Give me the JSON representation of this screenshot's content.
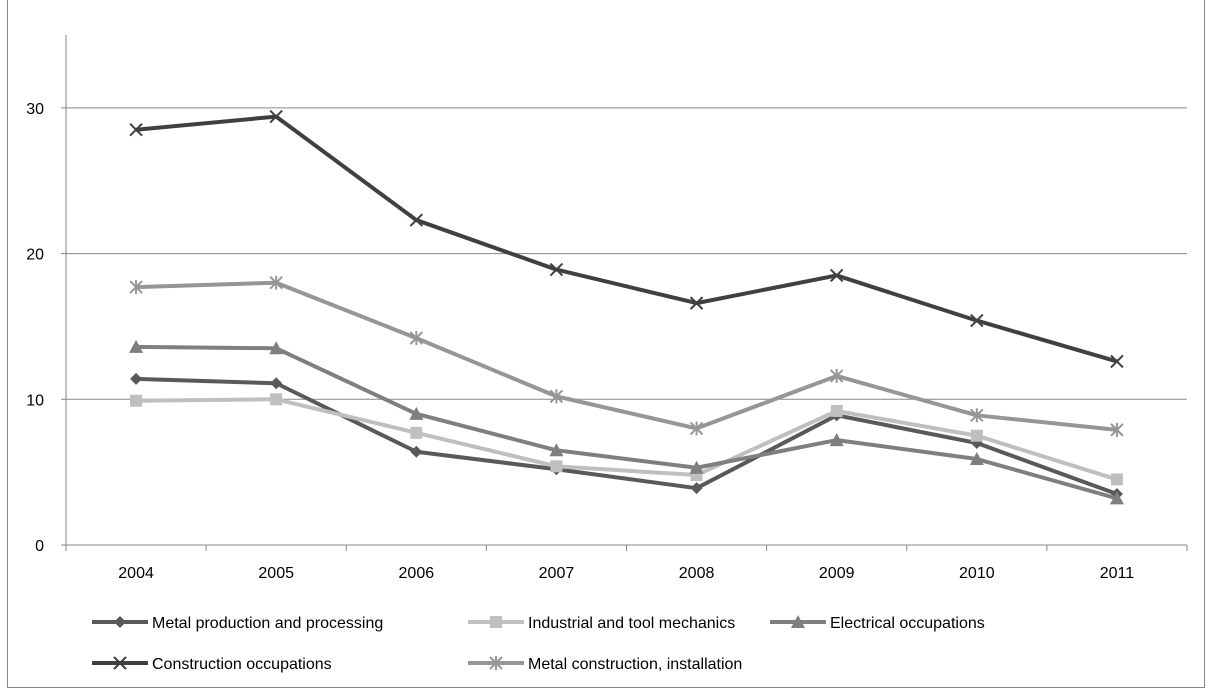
{
  "chart_data": {
    "type": "line",
    "title": "",
    "xlabel": "",
    "ylabel": "",
    "categories": [
      "2004",
      "2005",
      "2006",
      "2007",
      "2008",
      "2009",
      "2010",
      "2011"
    ],
    "ylim": [
      0,
      35
    ],
    "yticks": [
      0,
      10,
      20,
      30
    ],
    "grid": true,
    "legend_position": "bottom",
    "series": [
      {
        "name": "Metal production and processing",
        "color": "#595959",
        "marker": "diamond",
        "values": [
          11.4,
          11.1,
          6.4,
          5.2,
          3.9,
          8.9,
          7.0,
          3.5
        ]
      },
      {
        "name": "Industrial and tool mechanics",
        "color": "#bfbfbf",
        "marker": "square",
        "values": [
          9.9,
          10.0,
          7.7,
          5.4,
          4.8,
          9.2,
          7.5,
          4.5
        ]
      },
      {
        "name": "Electrical occupations",
        "color": "#7f7f7f",
        "marker": "triangle",
        "values": [
          13.6,
          13.5,
          9.0,
          6.5,
          5.3,
          7.2,
          5.9,
          3.2
        ]
      },
      {
        "name": "Construction occupations",
        "color": "#404040",
        "marker": "x",
        "values": [
          28.5,
          29.4,
          22.3,
          18.9,
          16.6,
          18.5,
          15.4,
          12.6
        ]
      },
      {
        "name": "Metal construction, installation",
        "color": "#969696",
        "marker": "star",
        "values": [
          17.7,
          18.0,
          14.2,
          10.2,
          8.0,
          11.6,
          8.9,
          7.9
        ]
      }
    ]
  }
}
